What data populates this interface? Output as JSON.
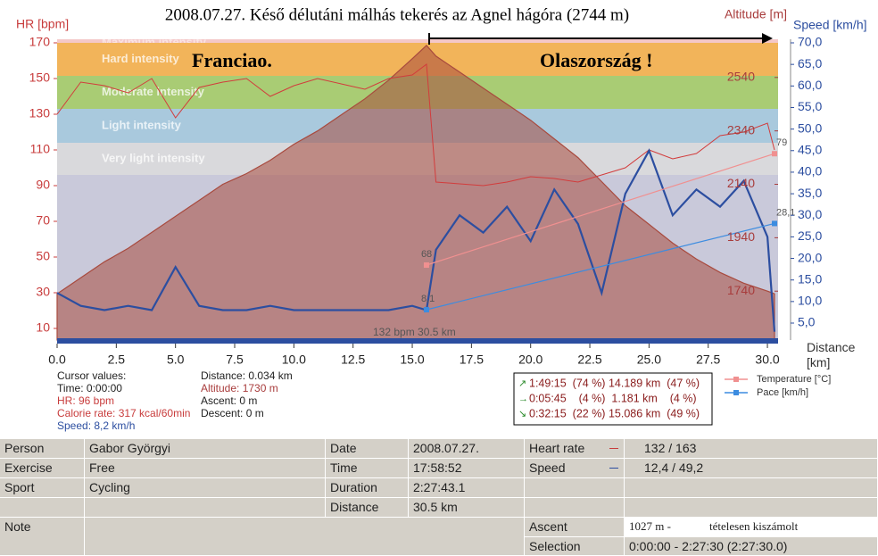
{
  "chart_data": {
    "type": "line",
    "title": "2008.07.27.  Késő délutáni málhás tekerés az Agnel hágóra (2744 m)",
    "ylabel": "HR [bpm]",
    "y2label": "Speed [km/h]",
    "y3label": "Altitude [m]",
    "xlabel": "Distance\n[km]",
    "xlim": [
      0,
      30.45
    ],
    "ylim": [
      3.5,
      172
    ],
    "y2lim": [
      1.07,
      70.83
    ],
    "y3lim": [
      1557,
      2683
    ],
    "y4lim": [
      60.6,
      90.3
    ],
    "xticks": [
      {
        "value": 0,
        "label": "0.0"
      },
      2.5,
      {
        "value": 5,
        "label": "5.0"
      },
      7.5,
      {
        "value": 10,
        "label": "10.0"
      },
      12.5,
      {
        "value": 15,
        "label": "15.0"
      },
      17.5,
      {
        "value": 20,
        "label": "20.0"
      },
      22.5,
      {
        "value": 25,
        "label": "25.0"
      },
      27.5,
      {
        "value": 30,
        "label": "30.0"
      }
    ],
    "yticks": [
      10,
      30,
      50,
      70,
      90,
      110,
      130,
      150,
      170
    ],
    "y2ticks": [
      {
        "value": 5,
        "label": "5,0"
      },
      {
        "value": 10,
        "label": "10,0"
      },
      {
        "value": 15,
        "label": "15,0"
      },
      {
        "value": 20,
        "label": "20,0"
      },
      {
        "value": 25,
        "label": "25,0"
      },
      {
        "value": 30,
        "label": "30,0"
      },
      {
        "value": 35,
        "label": "35,0"
      },
      {
        "value": 40,
        "label": "40,0"
      },
      {
        "value": 45,
        "label": "45,0"
      },
      {
        "value": 50,
        "label": "50,0"
      },
      {
        "value": 55,
        "label": "55,0"
      },
      {
        "value": 60,
        "label": "60,0"
      },
      {
        "value": 65,
        "label": "65,0"
      },
      {
        "value": 70,
        "label": "70,0"
      }
    ],
    "y3ticks": [
      1740,
      1940,
      2140,
      2340,
      2540
    ],
    "zones": [
      {
        "name": "Maximum intensity",
        "from": 170,
        "to": 172,
        "color": "#f4c8c8"
      },
      {
        "name": "Hard intensity",
        "from": 151.5,
        "to": 170,
        "color": "#f2b45a"
      },
      {
        "name": "Moderate intensity",
        "from": 133,
        "to": 151.5,
        "color": "#a9cc74"
      },
      {
        "name": "Light intensity",
        "from": 114,
        "to": 133,
        "color": "#a9c9dd"
      },
      {
        "name": "Very light intensity",
        "from": 96,
        "to": 114,
        "color": "#d9d9dc"
      }
    ],
    "x": [
      0,
      1,
      2,
      3,
      4,
      5,
      6,
      7,
      8,
      9,
      10,
      11,
      12,
      13,
      14,
      15,
      15.6,
      16,
      17,
      18,
      19,
      20,
      21,
      22,
      23,
      24,
      25,
      26,
      27,
      28,
      29,
      30,
      30.3
    ],
    "series": [
      {
        "name": "Altitude",
        "axis": "y3",
        "color": "#a84a3e",
        "values": [
          1730,
          1790,
          1850,
          1900,
          1960,
          2020,
          2080,
          2140,
          2180,
          2230,
          2290,
          2340,
          2400,
          2460,
          2530,
          2610,
          2660,
          2620,
          2560,
          2500,
          2440,
          2380,
          2310,
          2240,
          2150,
          2060,
          1990,
          1920,
          1860,
          1810,
          1770,
          1740,
          1730
        ]
      },
      {
        "name": "HR",
        "axis": "y",
        "color": "#d23c3c",
        "values": [
          130,
          148,
          146,
          142,
          150,
          128,
          145,
          148,
          150,
          140,
          146,
          150,
          147,
          144,
          150,
          152,
          158,
          92,
          91,
          90,
          92,
          95,
          94,
          92,
          96,
          100,
          110,
          105,
          108,
          118,
          120,
          125,
          110
        ]
      },
      {
        "name": "Speed",
        "axis": "y2",
        "color": "#2c4ea0",
        "values": [
          12,
          9,
          8,
          9,
          8,
          18,
          9,
          8,
          8,
          9,
          8,
          8,
          8,
          8,
          8,
          9,
          8,
          22,
          30,
          26,
          32,
          24,
          36,
          28,
          12,
          35,
          45,
          30,
          36,
          32,
          38,
          25,
          3
        ]
      }
    ],
    "trend_series": [
      {
        "name": "Temperature [°C]",
        "axis": "y4",
        "color": "#f09090",
        "x": [
          15.6,
          30.3
        ],
        "values": [
          68,
          79
        ]
      },
      {
        "name": "Pace [km/h]",
        "axis": "y2",
        "color": "#3c8ce0",
        "x": [
          15.6,
          30.3
        ],
        "values": [
          8.1,
          28.1
        ],
        "value_labels": [
          "8,1",
          "28,1"
        ]
      }
    ],
    "annotations": [
      "Franciao.",
      "Olaszország !"
    ],
    "cursor_label": "132 bpm 30.5 km",
    "cursor_values": [
      "Cursor values:",
      "Time: 0:00:00",
      "HR: 96 bpm",
      "Calorie rate: 317 kcal/60min",
      "Speed: 8,2 km/h"
    ],
    "cursor_values2": [
      "Distance: 0.034 km",
      "Altitude: 1730 m",
      "Ascent: 0 m",
      "Descent: 0 m"
    ],
    "laps": [
      "1:49:15  (74 %) 14.189 km  (47 %)",
      "0:05:45    (4 %)  1.181 km    (4 %)",
      "0:32:15  (22 %) 15.086 km  (49 %)"
    ]
  },
  "table": {
    "rows": [
      [
        "Person",
        "Gabor Györgyi",
        "Date",
        "2008.07.27.",
        "Heart rate",
        "132 / 163"
      ],
      [
        "Exercise",
        "Free",
        "Time",
        "17:58:52",
        "Speed",
        "12,4 / 49,2"
      ],
      [
        "Sport",
        "Cycling",
        "Duration",
        "2:27:43.1"
      ],
      [
        "Distance",
        "30.5 km"
      ],
      [
        "Note",
        "Ascent",
        "1027 m -",
        "tételesen kiszámolt"
      ],
      [
        "Selection",
        "0:00:00 - 2:27:30 (2:27:30.0)"
      ]
    ]
  }
}
